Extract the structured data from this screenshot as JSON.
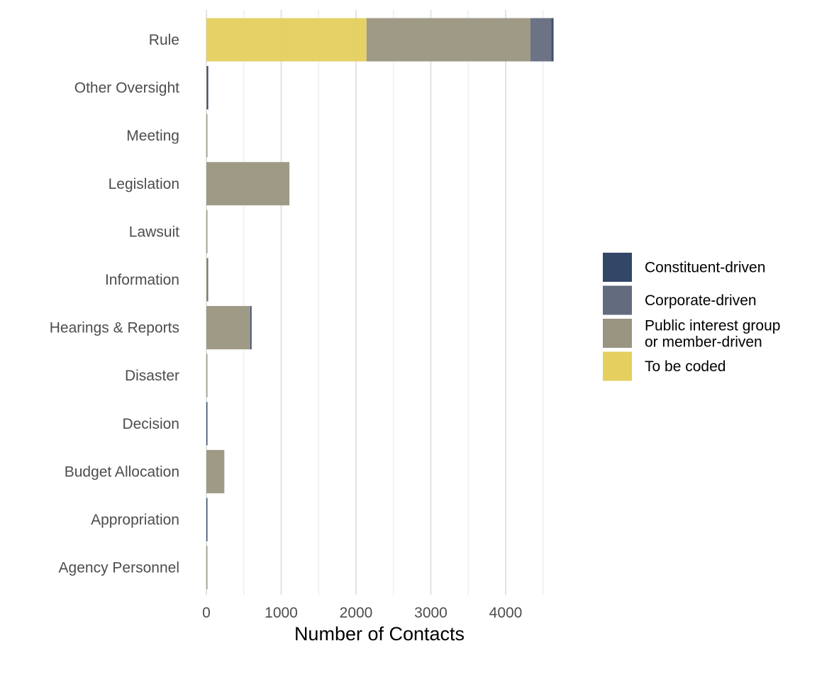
{
  "chart_data": {
    "type": "bar",
    "orientation": "horizontal",
    "stacked": true,
    "title": "",
    "xlabel": "Number of Contacts",
    "ylabel": "",
    "xlim": [
      0,
      4650
    ],
    "x_ticks": [
      0,
      1000,
      2000,
      3000,
      4000
    ],
    "grid": true,
    "legend_position": "right",
    "categories": [
      "Rule",
      "Other Oversight",
      "Meeting",
      "Legislation",
      "Lawsuit",
      "Information",
      "Hearings & Reports",
      "Disaster",
      "Decision",
      "Budget Allocation",
      "Appropriation",
      "Agency Personnel"
    ],
    "series": [
      {
        "name": "To be coded",
        "color": "#E5CF5F",
        "values": [
          2140,
          0,
          0,
          0,
          0,
          0,
          0,
          0,
          0,
          0,
          0,
          0
        ]
      },
      {
        "name": "Public interest group or member-driven",
        "name_lines": [
          "Public interest group",
          "or member-driven"
        ],
        "color": "#9A9580",
        "values": [
          2190,
          5,
          5,
          1110,
          5,
          10,
          585,
          5,
          0,
          240,
          0,
          5
        ]
      },
      {
        "name": "Corporate-driven",
        "color": "#636B7E",
        "values": [
          280,
          5,
          0,
          0,
          0,
          5,
          5,
          0,
          0,
          0,
          0,
          0
        ]
      },
      {
        "name": "Constituent-driven",
        "color": "#324668",
        "values": [
          30,
          15,
          0,
          0,
          0,
          0,
          10,
          0,
          5,
          0,
          5,
          0
        ]
      }
    ],
    "legend_order": [
      "Constituent-driven",
      "Corporate-driven",
      "Public interest group or member-driven",
      "To be coded"
    ]
  }
}
